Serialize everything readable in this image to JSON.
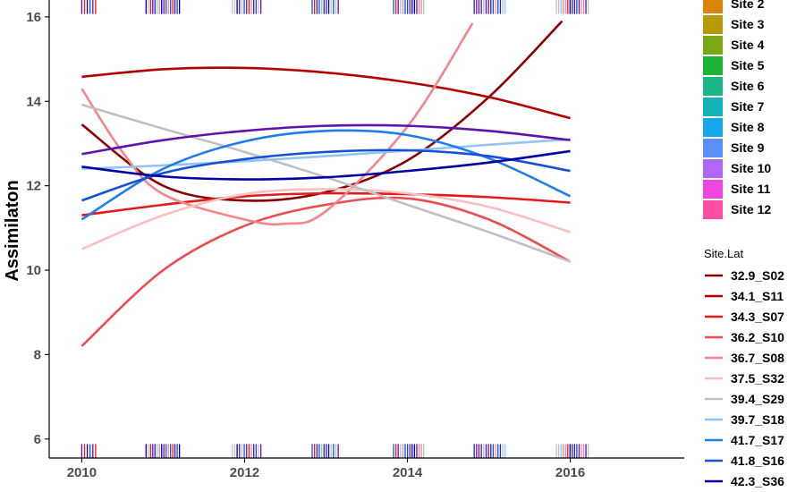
{
  "chart_data": {
    "type": "line",
    "title": "",
    "xlabel": "",
    "ylabel": "Assimilaton",
    "xlim": [
      2009.6,
      2017.4
    ],
    "ylim": [
      5.55,
      16.4
    ],
    "x_ticks": [
      2010,
      2012,
      2014,
      2016
    ],
    "y_ticks": [
      6,
      8,
      10,
      12,
      14,
      16
    ],
    "grid": false,
    "legend_position": "right",
    "fill_legend": {
      "title": "",
      "entries": [
        {
          "name": "Site 2",
          "color": "#D98308"
        },
        {
          "name": "Site 3",
          "color": "#B89A08"
        },
        {
          "name": "Site 4",
          "color": "#7AA814"
        },
        {
          "name": "Site 5",
          "color": "#1DB334"
        },
        {
          "name": "Site 6",
          "color": "#1CB586"
        },
        {
          "name": "Site 7",
          "color": "#14B3B8"
        },
        {
          "name": "Site 8",
          "color": "#16A8EE"
        },
        {
          "name": "Site 9",
          "color": "#5A8EF8"
        },
        {
          "name": "Site 10",
          "color": "#B067F7"
        },
        {
          "name": "Site 11",
          "color": "#EE44E0"
        },
        {
          "name": "Site 12",
          "color": "#FA4FA2"
        }
      ]
    },
    "series": [
      {
        "name": "32.9_S02",
        "color": "#8B0000",
        "x": [
          2010,
          2011,
          2012,
          2013,
          2014,
          2015,
          2015.9
        ],
        "y": [
          13.45,
          12.0,
          11.65,
          11.85,
          12.6,
          14.1,
          15.9
        ]
      },
      {
        "name": "34.1_S11",
        "color": "#B30000",
        "x": [
          2010,
          2011,
          2012,
          2013,
          2014,
          2015,
          2016
        ],
        "y": [
          14.58,
          14.76,
          14.79,
          14.68,
          14.45,
          14.1,
          13.6
        ]
      },
      {
        "name": "34.3_S07",
        "color": "#E41A1C",
        "x": [
          2010,
          2011,
          2012,
          2013,
          2014,
          2015,
          2016
        ],
        "y": [
          11.3,
          11.55,
          11.75,
          11.82,
          11.8,
          11.73,
          11.6
        ]
      },
      {
        "name": "36.2_S10",
        "color": "#EE4B50",
        "x": [
          2010,
          2011,
          2012,
          2013,
          2014,
          2015,
          2016
        ],
        "y": [
          8.2,
          10.0,
          11.05,
          11.55,
          11.7,
          11.2,
          10.2
        ]
      },
      {
        "name": "36.7_S08",
        "color": "#F4868A",
        "x": [
          2010,
          2010.5,
          2011,
          2012,
          2012.5,
          2013,
          2014,
          2014.8
        ],
        "y": [
          14.3,
          12.8,
          11.8,
          11.2,
          11.1,
          11.4,
          13.4,
          15.85
        ]
      },
      {
        "name": "37.5_S32",
        "color": "#F8C0C0",
        "x": [
          2010,
          2011,
          2012,
          2013,
          2014,
          2015,
          2016
        ],
        "y": [
          10.5,
          11.3,
          11.8,
          11.92,
          11.82,
          11.5,
          10.9
        ]
      },
      {
        "name": "39.4_S29",
        "color": "#C0C0C0",
        "x": [
          2010,
          2011,
          2012,
          2013,
          2014,
          2015,
          2016
        ],
        "y": [
          13.92,
          13.35,
          12.8,
          12.2,
          11.55,
          10.9,
          10.2
        ]
      },
      {
        "name": "39.7_S18",
        "color": "#94C4F2",
        "x": [
          2010,
          2011,
          2012,
          2013,
          2014,
          2015,
          2016
        ],
        "y": [
          12.4,
          12.48,
          12.58,
          12.7,
          12.83,
          12.97,
          13.1
        ]
      },
      {
        "name": "41.7_S17",
        "color": "#1F7CEA",
        "x": [
          2010,
          2011,
          2012,
          2013,
          2014,
          2015,
          2016
        ],
        "y": [
          11.2,
          12.4,
          13.05,
          13.3,
          13.2,
          12.65,
          11.75
        ]
      },
      {
        "name": "41.8_S16",
        "color": "#1450D8",
        "x": [
          2010,
          2011,
          2012,
          2013,
          2014,
          2015,
          2016
        ],
        "y": [
          11.65,
          12.3,
          12.63,
          12.8,
          12.84,
          12.7,
          12.35
        ]
      },
      {
        "name": "42.3_S36",
        "color": "#0000A5",
        "x": [
          2010,
          2011,
          2012,
          2013,
          2014,
          2015,
          2016
        ],
        "y": [
          12.45,
          12.22,
          12.15,
          12.2,
          12.35,
          12.55,
          12.82
        ]
      },
      {
        "name": "",
        "color": "#5E12AE",
        "x": [
          2010,
          2011,
          2012,
          2013,
          2014,
          2015,
          2016
        ],
        "y": [
          12.75,
          13.08,
          13.3,
          13.42,
          13.42,
          13.3,
          13.08
        ]
      }
    ],
    "line_legend": {
      "title": "Site.Lat",
      "entries": [
        {
          "name": "32.9_S02",
          "color": "#8B0000"
        },
        {
          "name": "34.1_S11",
          "color": "#B30000"
        },
        {
          "name": "34.3_S07",
          "color": "#E41A1C"
        },
        {
          "name": "36.2_S10",
          "color": "#EE4B50"
        },
        {
          "name": "36.7_S08",
          "color": "#F4868A"
        },
        {
          "name": "37.5_S32",
          "color": "#F8C0C0"
        },
        {
          "name": "39.4_S29",
          "color": "#C0C0C0"
        },
        {
          "name": "39.7_S18",
          "color": "#94C4F2"
        },
        {
          "name": "41.7_S17",
          "color": "#1F7CEA"
        },
        {
          "name": "41.8_S16",
          "color": "#1450D8"
        },
        {
          "name": "42.3_S36",
          "color": "#0000A5"
        }
      ]
    },
    "rug_groups": [
      {
        "x_from": 2010.0,
        "x_to": 2010.17
      },
      {
        "x_from": 2010.79,
        "x_to": 2011.2
      },
      {
        "x_from": 2011.85,
        "x_to": 2012.2
      },
      {
        "x_from": 2012.83,
        "x_to": 2013.15
      },
      {
        "x_from": 2013.83,
        "x_to": 2014.2
      },
      {
        "x_from": 2014.82,
        "x_to": 2015.2
      },
      {
        "x_from": 2015.83,
        "x_to": 2016.22
      }
    ],
    "rug_colors": [
      "#0000A5",
      "#1450D8",
      "#2A1AC8",
      "#5E12AE",
      "#E41A1C",
      "#F4868A",
      "#94C4F2",
      "#C0C0C0"
    ]
  }
}
